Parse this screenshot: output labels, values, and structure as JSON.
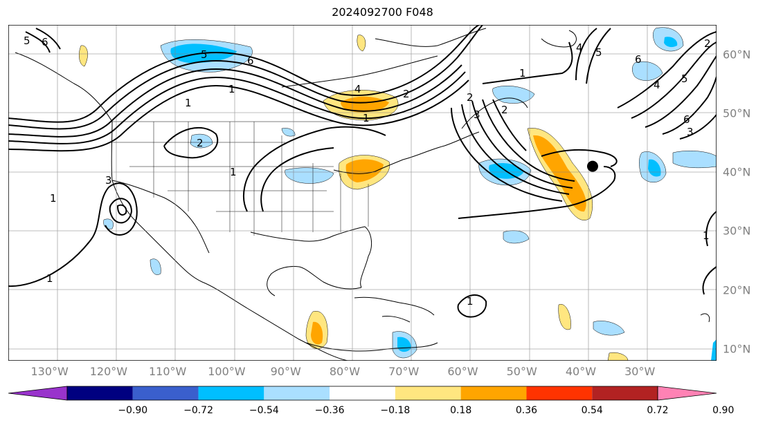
{
  "title": "2024092700 F048",
  "lon_ticks": [
    "130°W",
    "120°W",
    "110°W",
    "100°W",
    "90°W",
    "80°W",
    "70°W",
    "60°W",
    "50°W",
    "40°W",
    "30°W"
  ],
  "lon_values": [
    -130,
    -120,
    -110,
    -100,
    -90,
    -80,
    -70,
    -60,
    -50,
    -40,
    -30
  ],
  "lat_ticks": [
    "60°N",
    "50°N",
    "40°N",
    "30°N",
    "20°N",
    "10°N"
  ],
  "lat_values": [
    60,
    50,
    40,
    30,
    20,
    10
  ],
  "extent": {
    "lon_min": -137,
    "lon_max": -17,
    "lat_min": 8,
    "lat_max": 65
  },
  "colorbar": {
    "labels": [
      "−0.90",
      "−0.72",
      "−0.54",
      "−0.36",
      "−0.18",
      "0.18",
      "0.36",
      "0.54",
      "0.72",
      "0.90"
    ],
    "colors": [
      "#9933cc",
      "#000080",
      "#3a5fcd",
      "#00bfff",
      "#aadfff",
      "#ffffff",
      "#ffe680",
      "#ffa500",
      "#ff3300",
      "#b22222",
      "#ff82b4"
    ],
    "extend": "both"
  },
  "marker": {
    "name": "storm-center",
    "lon": -38,
    "lat": 41,
    "color": "#000000"
  },
  "contour_labels": [
    "5",
    "6",
    "5",
    "6",
    "1",
    "1",
    "2",
    "3",
    "4",
    "2",
    "1",
    "1",
    "1",
    "1",
    "2",
    "3",
    "4",
    "5",
    "6",
    "1",
    "2",
    "3",
    "4",
    "5",
    "6",
    "1",
    "2",
    "1"
  ]
}
